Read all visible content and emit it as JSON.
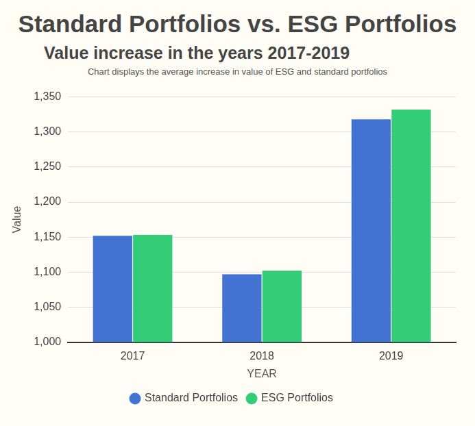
{
  "chart_data": {
    "type": "bar",
    "title": "Standard Portfolios vs. ESG Portfolios",
    "subtitle": "Value increase in the years 2017-2019",
    "annotations": [
      "Chart displays the average increase in value of ESG and standard portfolios"
    ],
    "x_label": "YEAR",
    "y_label": "Value",
    "categories": [
      "2017",
      "2018",
      "2019"
    ],
    "series": [
      {
        "name": "Standard Portfolios",
        "color": "#4273d3",
        "values": [
          1152,
          1097,
          1318
        ]
      },
      {
        "name": "ESG Portfolios",
        "color": "#33cc77",
        "values": [
          1153,
          1102,
          1332
        ]
      }
    ],
    "ylim": [
      1000,
      1350
    ],
    "yticks": [
      1000,
      1050,
      1100,
      1150,
      1200,
      1250,
      1300,
      1350
    ],
    "grid": true,
    "legend": "bottom"
  }
}
